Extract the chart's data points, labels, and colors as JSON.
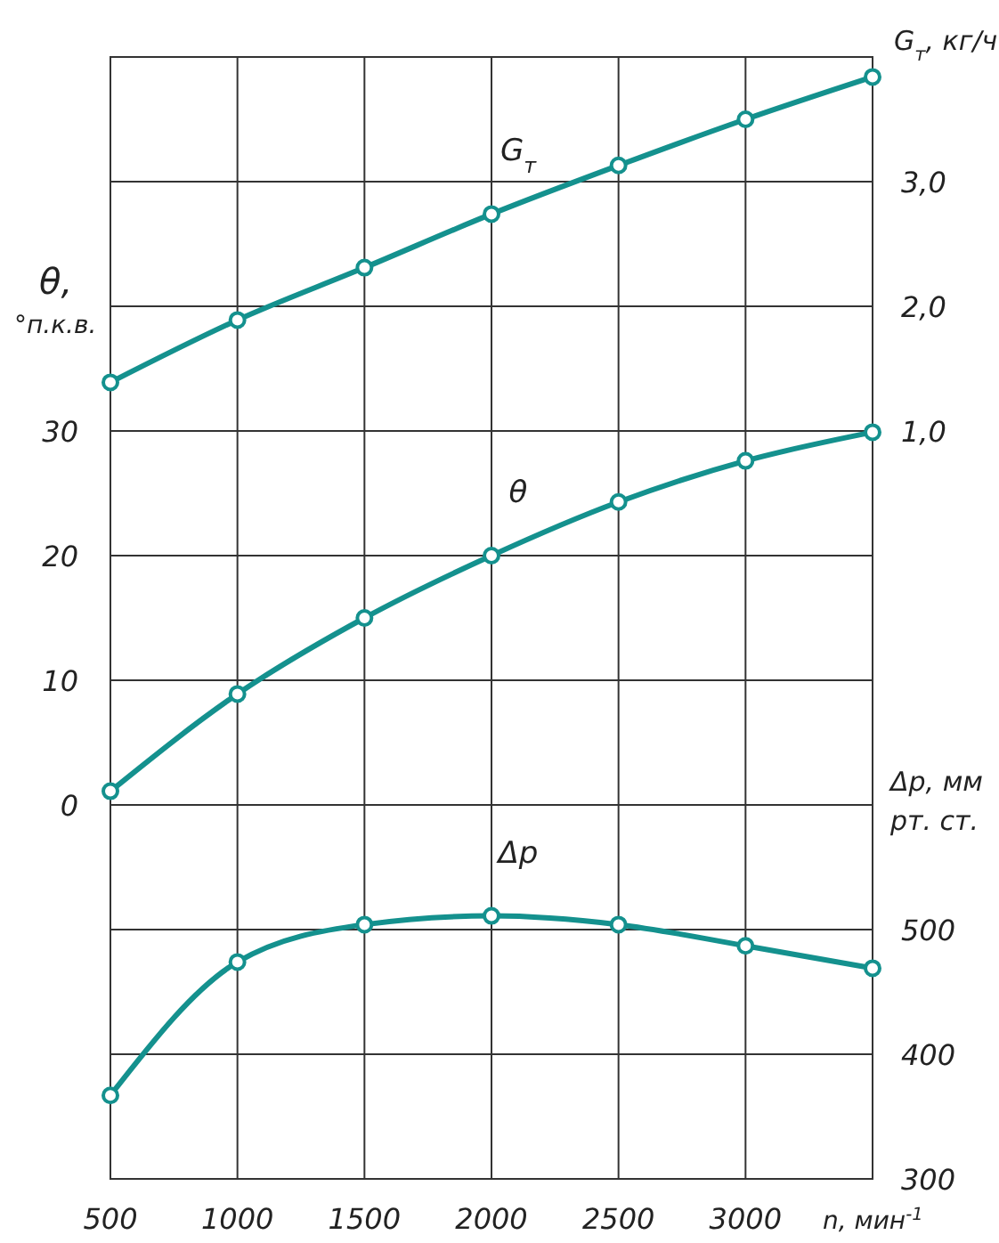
{
  "chart_data": {
    "type": "line",
    "xlabel": "n, мин$^{-1}$",
    "ylabel": "θ, °п.к.в.",
    "y2label": "G$_{т}$, кг/ч",
    "y3label": "Δp, мм рт. ст.",
    "x": [
      500,
      1000,
      1500,
      2000,
      2500,
      3000,
      3500
    ],
    "xlim": [
      500,
      3500
    ],
    "xticks": [
      500,
      1000,
      1500,
      2000,
      2500,
      3000,
      {
        "value": 3500,
        "label": null
      }
    ],
    "ylim": [
      -30,
      60
    ],
    "yticks": [
      {
        "value": -30,
        "label": null
      },
      {
        "value": -20,
        "label": null
      },
      {
        "value": -10,
        "label": null
      },
      0,
      10,
      20,
      30,
      {
        "value": 40,
        "label": null
      },
      {
        "value": 50,
        "label": null
      },
      {
        "value": 60,
        "label": null
      }
    ],
    "y2lim": [
      -5,
      4
    ],
    "y2ticks": [
      {
        "value": 1,
        "label": "1,0"
      },
      {
        "value": 2,
        "label": "2,0"
      },
      {
        "value": 3,
        "label": "3,0"
      }
    ],
    "y3lim": [
      300,
      1200
    ],
    "y3ticks": [
      300,
      400,
      500
    ],
    "grid": true,
    "marker": "circle",
    "line_style": "solid",
    "series": [
      {
        "name": "G$_{т}$",
        "color": "#14918e",
        "axis": "y2",
        "values": [
          1.39,
          1.89,
          2.31,
          2.74,
          3.13,
          3.5,
          3.84
        ]
      },
      {
        "name": "θ",
        "color": "#14918e",
        "axis": "y",
        "values": [
          1.1,
          8.9,
          15,
          20,
          24.3,
          27.6,
          29.9
        ]
      },
      {
        "name": "Δp",
        "color": "#14918e",
        "axis": "y3",
        "values": [
          367,
          474,
          504,
          511,
          504,
          487,
          469
        ]
      }
    ]
  }
}
